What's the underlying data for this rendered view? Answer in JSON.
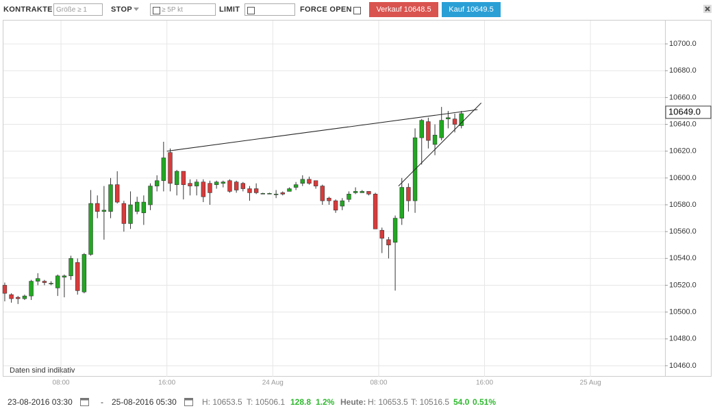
{
  "toolbar": {
    "contracts_label": "KONTRAKTE",
    "size_placeholder": "Größe ≥ 1",
    "stop_label": "STOP",
    "stop_placeholder": "≥ 5P kt",
    "limit_label": "LIMIT",
    "force_open_label": "FORCE OPEN",
    "sell_button": "Verkauf 10648.5",
    "buy_button": "Kauf 10649.5"
  },
  "chart_data": {
    "type": "candlestick",
    "annotation": "Daten sind indikativ",
    "x": [
      "23 Aug 03:30",
      "23 Aug 04:00",
      "23 Aug 04:30",
      "23 Aug 05:00",
      "23 Aug 05:30",
      "23 Aug 06:00",
      "23 Aug 06:30",
      "23 Aug 07:00",
      "23 Aug 07:30",
      "23 Aug 08:00",
      "23 Aug 08:30",
      "23 Aug 09:00",
      "23 Aug 09:30",
      "23 Aug 10:00",
      "23 Aug 10:30",
      "23 Aug 11:00",
      "23 Aug 11:30",
      "23 Aug 12:00",
      "23 Aug 12:30",
      "23 Aug 13:00",
      "23 Aug 13:30",
      "23 Aug 14:00",
      "23 Aug 14:30",
      "23 Aug 15:00",
      "23 Aug 15:30",
      "23 Aug 16:00",
      "23 Aug 16:30",
      "23 Aug 17:00",
      "23 Aug 17:30",
      "23 Aug 18:00",
      "23 Aug 18:30",
      "23 Aug 19:00",
      "23 Aug 19:30",
      "23 Aug 20:00",
      "23 Aug 20:30",
      "23 Aug 21:00",
      "23 Aug 21:30",
      "23 Aug 22:00",
      "23 Aug 22:30",
      "23 Aug 23:00",
      "23 Aug 23:30",
      "24 Aug 00:00",
      "24 Aug 00:30",
      "24 Aug 01:00",
      "24 Aug 01:30",
      "24 Aug 02:00",
      "24 Aug 02:30",
      "24 Aug 03:00",
      "24 Aug 03:30",
      "24 Aug 04:00",
      "24 Aug 04:30",
      "24 Aug 05:00",
      "24 Aug 05:30",
      "24 Aug 06:00",
      "24 Aug 06:30",
      "24 Aug 07:00",
      "24 Aug 07:30",
      "24 Aug 08:00",
      "24 Aug 08:30",
      "24 Aug 09:00",
      "24 Aug 09:30",
      "24 Aug 10:00",
      "24 Aug 10:30",
      "24 Aug 11:00",
      "24 Aug 11:30",
      "24 Aug 12:00",
      "24 Aug 12:30",
      "24 Aug 13:00",
      "24 Aug 13:30",
      "24 Aug 14:00"
    ],
    "open": [
      10520,
      10513,
      10511,
      10510,
      10512,
      10523,
      10523,
      10521,
      10518,
      10526,
      10527,
      10537,
      10515,
      10543,
      10581,
      10575,
      10575,
      10595,
      10581,
      10566,
      10575,
      10574,
      10580,
      10594,
      10598,
      10619,
      10595,
      10605,
      10596,
      10594,
      10597,
      10596,
      10595,
      10596,
      10598,
      10597,
      10596,
      10592,
      10592,
      10588,
      10588,
      10588,
      10589,
      10590,
      10593,
      10596,
      10599,
      10598,
      10594,
      10585,
      10583,
      10579,
      10584,
      10589,
      10589,
      10590,
      10588,
      10561,
      10554,
      10552,
      10570,
      10593,
      10583,
      10630,
      10642,
      10625,
      10630,
      10644,
      10644,
      10639
    ],
    "high": [
      10522,
      10514,
      10512,
      10513,
      10524,
      10529,
      10524,
      10523,
      10528,
      10528,
      10542,
      10540,
      10544,
      10591,
      10587,
      10594,
      10600,
      10605,
      10583,
      10590,
      10586,
      10587,
      10596,
      10602,
      10627,
      10622,
      10606,
      10605,
      10599,
      10599,
      10599,
      10598,
      10598,
      10598,
      10599,
      10598,
      10597,
      10594,
      10596,
      10589,
      10589,
      10591,
      10590,
      10593,
      10597,
      10602,
      10601,
      10598,
      10595,
      10586,
      10584,
      10585,
      10590,
      10593,
      10591,
      10590,
      10589,
      10563,
      10556,
      10572,
      10600,
      10596,
      10637,
      10644,
      10645,
      10640,
      10653,
      10650,
      10648,
      10650
    ],
    "low": [
      10508,
      10507,
      10506,
      10509,
      10509,
      10520,
      10520,
      10520,
      10512,
      10511,
      10524,
      10513,
      10514,
      10542,
      10570,
      10554,
      10570,
      10581,
      10560,
      10562,
      10573,
      10565,
      10576,
      10590,
      10590,
      10590,
      10587,
      10584,
      10587,
      10587,
      10582,
      10580,
      10592,
      10593,
      10589,
      10589,
      10590,
      10583,
      10588,
      10588,
      10588,
      10585,
      10587,
      10590,
      10591,
      10594,
      10595,
      10592,
      10580,
      10580,
      10574,
      10576,
      10582,
      10588,
      10589,
      10587,
      10562,
      10544,
      10540,
      10516,
      10565,
      10575,
      10574,
      10610,
      10622,
      10617,
      10628,
      10637,
      10634,
      10637
    ],
    "close": [
      10514,
      10510,
      10510,
      10512,
      10523,
      10525,
      10522,
      10521.5,
      10527,
      10527,
      10540,
      10516,
      10543,
      10581,
      10575,
      10576,
      10595,
      10582,
      10566,
      10580,
      10582,
      10582,
      10594,
      10598,
      10615,
      10596,
      10605,
      10595,
      10594,
      10597,
      10586,
      10589,
      10597,
      10597,
      10590,
      10591,
      10592,
      10589,
      10589,
      10588.5,
      10588.5,
      10588,
      10588,
      10592,
      10595,
      10599,
      10596,
      10594,
      10583,
      10583,
      10576,
      10583,
      10588,
      10590,
      10590,
      10588,
      10562,
      10555,
      10550,
      10570,
      10593,
      10583,
      10630,
      10643,
      10628,
      10632,
      10643,
      10645,
      10640,
      10648
    ],
    "up_color": "#22a822",
    "down_color": "#d93b3b",
    "xlim": [
      "23 Aug 03:39",
      "25 Aug 05:38"
    ],
    "xticks": [
      {
        "value": "23 Aug 08:00",
        "label": "08:00"
      },
      {
        "value": "23 Aug 16:00",
        "label": "16:00"
      },
      {
        "value": "24 Aug 00:00",
        "label": "24 Aug"
      },
      {
        "value": "24 Aug 08:00",
        "label": "08:00"
      },
      {
        "value": "24 Aug 16:00",
        "label": "16:00"
      },
      {
        "value": "25 Aug 00:00",
        "label": "25 Aug"
      }
    ],
    "ylim": [
      10451.8,
      10717.4
    ],
    "yticks": [
      {
        "value": 10460,
        "label": "10460.0"
      },
      {
        "value": 10480,
        "label": "10480.0"
      },
      {
        "value": 10500,
        "label": "10500.0"
      },
      {
        "value": 10520,
        "label": "10520.0"
      },
      {
        "value": 10540,
        "label": "10540.0"
      },
      {
        "value": 10560,
        "label": "10560.0"
      },
      {
        "value": 10580,
        "label": "10580.0"
      },
      {
        "value": 10600,
        "label": "10600.0"
      },
      {
        "value": 10620,
        "label": "10620.0"
      },
      {
        "value": 10640,
        "label": "10640.0"
      },
      {
        "value": 10660,
        "label": "10660.0"
      },
      {
        "value": 10680,
        "label": "10680.0"
      },
      {
        "value": 10700,
        "label": "10700.0"
      }
    ],
    "grid": true,
    "last_price": {
      "value": 10649,
      "label": "10649.0"
    },
    "trendlines": [
      {
        "x": [
          "23 Aug 16:00",
          "24 Aug 15:28"
        ],
        "y": [
          10620,
          10651
        ]
      },
      {
        "x": [
          "24 Aug 09:30",
          "24 Aug 15:45"
        ],
        "y": [
          10594,
          10656
        ]
      }
    ]
  },
  "footer": {
    "range_start": "23-08-2016 03:30",
    "separator": "-",
    "range_end": "25-08-2016 05:30",
    "range_high": "H: 10653.5",
    "range_low": "T: 10506.1",
    "range_change": "128.8",
    "range_change_pct": "1.2%",
    "today_label": "Heute:",
    "today_high": "H: 10653.5",
    "today_low": "T: 10516.5",
    "today_change": "54.0",
    "today_change_pct": "0.51%"
  }
}
